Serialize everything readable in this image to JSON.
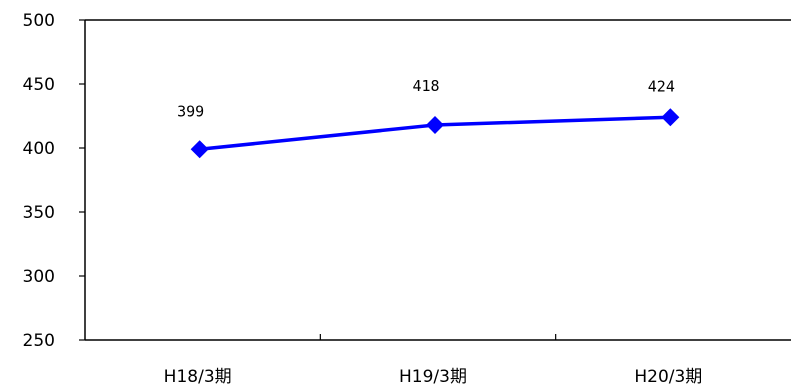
{
  "chart_data": {
    "type": "line",
    "categories": [
      "H18/3期",
      "H19/3期",
      "H20/3期"
    ],
    "series": [
      {
        "values": [
          399,
          418,
          424
        ],
        "color": "#0000ff",
        "marker": "diamond"
      }
    ],
    "data_labels": [
      "399",
      "418",
      "424"
    ],
    "ylim": [
      250,
      500
    ],
    "yticks": [
      250,
      300,
      350,
      400,
      450,
      500
    ],
    "grid": false,
    "legend": "none"
  }
}
